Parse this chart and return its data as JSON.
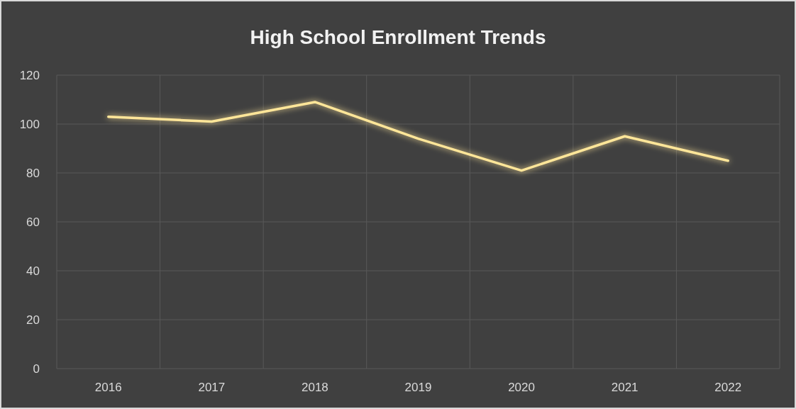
{
  "chart_data": {
    "type": "line",
    "title": "High School Enrollment Trends",
    "categories": [
      "2016",
      "2017",
      "2018",
      "2019",
      "2020",
      "2021",
      "2022"
    ],
    "series": [
      {
        "color": "#ffe699",
        "values": [
          103,
          101,
          109,
          94,
          81,
          95,
          85
        ]
      }
    ],
    "ylim": [
      0,
      120
    ],
    "yticks": [
      0,
      20,
      40,
      60,
      80,
      100,
      120
    ],
    "grid": true,
    "marker": "none",
    "line_style": "solid"
  }
}
